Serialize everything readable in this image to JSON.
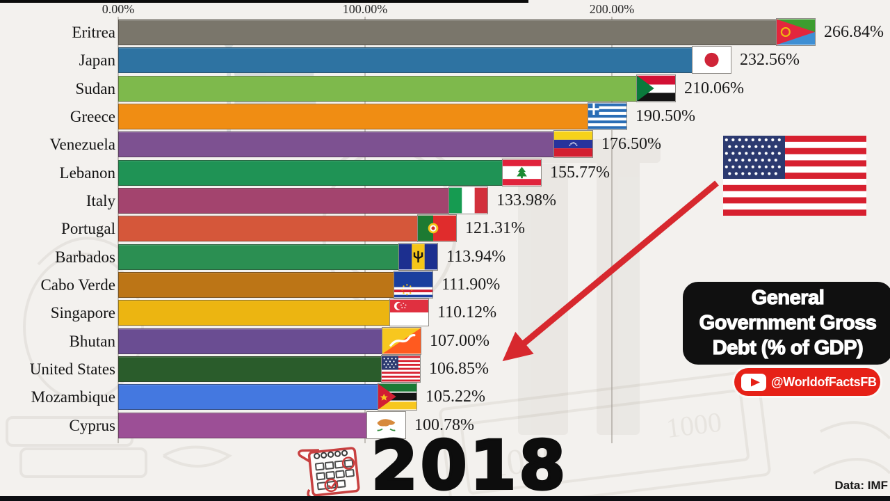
{
  "chart_data": {
    "type": "bar",
    "orientation": "horizontal",
    "title": "General Government Gross Debt (% of GDP)",
    "year": "2018",
    "source": "Data: IMF",
    "tick_labels": [
      "0.00%",
      "100.00%",
      "200.00%"
    ],
    "x_ticks": [
      0,
      100,
      200
    ],
    "xlim": [
      0,
      312
    ],
    "grid": true,
    "categories": [
      "Eritrea",
      "Japan",
      "Sudan",
      "Greece",
      "Venezuela",
      "Lebanon",
      "Italy",
      "Portugal",
      "Barbados",
      "Cabo Verde",
      "Singapore",
      "Bhutan",
      "United States",
      "Mozambique",
      "Cyprus"
    ],
    "values": [
      266.84,
      232.56,
      210.06,
      190.5,
      176.5,
      155.77,
      133.98,
      121.31,
      113.94,
      111.9,
      110.12,
      107.0,
      106.85,
      105.22,
      100.78
    ],
    "value_labels": [
      "266.84%",
      "232.56%",
      "210.06%",
      "190.50%",
      "176.50%",
      "155.77%",
      "133.98%",
      "121.31%",
      "113.94%",
      "111.90%",
      "110.12%",
      "107.00%",
      "106.85%",
      "105.22%",
      "100.78%"
    ],
    "colors": [
      "#7a766b",
      "#2e73a2",
      "#7eb94c",
      "#f08d13",
      "#7d5191",
      "#1f9355",
      "#a3446e",
      "#d5573a",
      "#2b8f52",
      "#bc7516",
      "#ecb511",
      "#6a4d92",
      "#2a5c2b",
      "#4478e0",
      "#9c4f96"
    ],
    "flags": [
      "eritrea",
      "japan",
      "sudan",
      "greece",
      "venezuela",
      "lebanon",
      "italy",
      "portugal",
      "barbados",
      "cabo-verde",
      "singapore",
      "bhutan",
      "united-states",
      "mozambique",
      "cyprus"
    ]
  },
  "overlay": {
    "title_lines": [
      "General",
      "Government Gross",
      "Debt (% of GDP)"
    ],
    "badge": {
      "handle": "@WorldofFactsFB",
      "color": "#e62117"
    },
    "year": "2018",
    "source": "Data: IMF",
    "arrow_color": "#d7282e",
    "highlight_country": "United States"
  }
}
